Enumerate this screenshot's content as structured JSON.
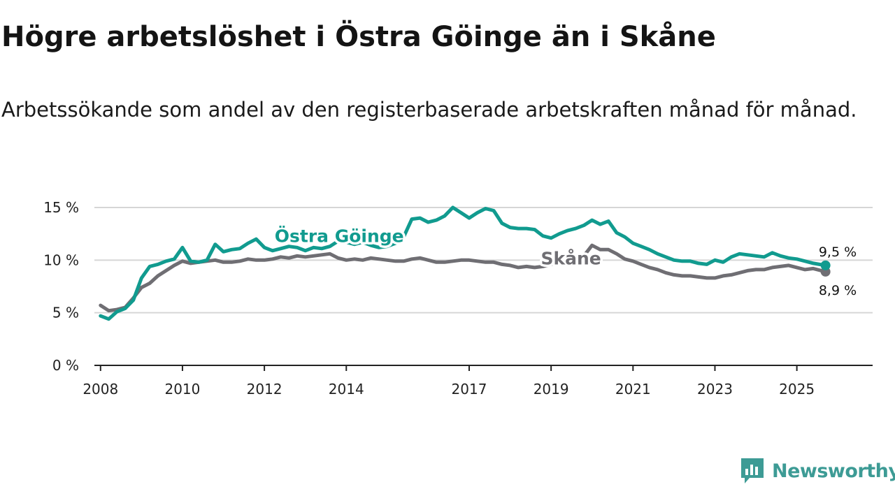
{
  "title": "Högre arbetslöshet i Östra Göinge än i Skåne",
  "subtitle": "Arbetssökande som andel av den registerbaserade arbetskraften månad för månad.",
  "brand": "Newsworthy",
  "colors": {
    "primary": "#119b8f",
    "secondary": "#6f6e73",
    "grid": "#d6d6d6",
    "axis": "#222222",
    "brand": "#3d9b95"
  },
  "chart_data": {
    "type": "line",
    "title": "Högre arbetslöshet i Östra Göinge än i Skåne",
    "xlabel": "",
    "ylabel": "",
    "xlim": [
      2007.85,
      2026.85
    ],
    "ylim": [
      0,
      15
    ],
    "y_ticks": [
      {
        "value": 0,
        "label": "0 %"
      },
      {
        "value": 5,
        "label": "5 %"
      },
      {
        "value": 10,
        "label": "10 %"
      },
      {
        "value": 15,
        "label": "15 %"
      }
    ],
    "x_ticks": [
      {
        "value": 2008,
        "label": "2008"
      },
      {
        "value": 2010,
        "label": "2010"
      },
      {
        "value": 2012,
        "label": "2012"
      },
      {
        "value": 2014,
        "label": "2014"
      },
      {
        "value": 2017,
        "label": "2017"
      },
      {
        "value": 2019,
        "label": "2019"
      },
      {
        "value": 2021,
        "label": "2021"
      },
      {
        "value": 2023,
        "label": "2023"
      },
      {
        "value": 2025,
        "label": "2025"
      }
    ],
    "grid": true,
    "series": [
      {
        "name": "Östra Göinge",
        "label": "Östra Göinge",
        "end_label": "9,5 %",
        "color": "#119b8f",
        "x": [
          2008.0,
          2008.2,
          2008.4,
          2008.6,
          2008.8,
          2009.0,
          2009.2,
          2009.4,
          2009.6,
          2009.8,
          2010.0,
          2010.2,
          2010.4,
          2010.6,
          2010.8,
          2011.0,
          2011.2,
          2011.4,
          2011.6,
          2011.8,
          2012.0,
          2012.2,
          2012.4,
          2012.6,
          2012.8,
          2013.0,
          2013.2,
          2013.4,
          2013.6,
          2013.8,
          2014.0,
          2014.2,
          2014.4,
          2014.6,
          2014.8,
          2015.0,
          2015.2,
          2015.4,
          2015.6,
          2015.8,
          2016.0,
          2016.2,
          2016.4,
          2016.6,
          2016.8,
          2017.0,
          2017.2,
          2017.4,
          2017.6,
          2017.8,
          2018.0,
          2018.2,
          2018.4,
          2018.6,
          2018.8,
          2019.0,
          2019.2,
          2019.4,
          2019.6,
          2019.8,
          2020.0,
          2020.2,
          2020.4,
          2020.6,
          2020.8,
          2021.0,
          2021.2,
          2021.4,
          2021.6,
          2021.8,
          2022.0,
          2022.2,
          2022.4,
          2022.6,
          2022.8,
          2023.0,
          2023.2,
          2023.4,
          2023.6,
          2023.8,
          2024.0,
          2024.2,
          2024.4,
          2024.6,
          2024.8,
          2025.0,
          2025.2,
          2025.4,
          2025.7
        ],
        "values": [
          4.7,
          4.4,
          5.1,
          5.4,
          6.2,
          8.3,
          9.4,
          9.6,
          9.9,
          10.1,
          11.2,
          9.9,
          9.8,
          10.0,
          11.5,
          10.8,
          11.0,
          11.1,
          11.6,
          12.0,
          11.2,
          10.9,
          11.1,
          11.3,
          11.2,
          10.9,
          11.2,
          11.1,
          11.3,
          11.8,
          11.7,
          11.5,
          11.7,
          11.4,
          11.2,
          11.3,
          11.6,
          12.2,
          13.9,
          14.0,
          13.6,
          13.8,
          14.2,
          15.0,
          14.5,
          14.0,
          14.5,
          14.9,
          14.7,
          13.5,
          13.1,
          13.0,
          13.0,
          12.9,
          12.3,
          12.1,
          12.5,
          12.8,
          13.0,
          13.3,
          13.8,
          13.4,
          13.7,
          12.6,
          12.2,
          11.6,
          11.3,
          11.0,
          10.6,
          10.3,
          10.0,
          9.9,
          9.9,
          9.7,
          9.6,
          10.0,
          9.8,
          10.3,
          10.6,
          10.5,
          10.4,
          10.3,
          10.7,
          10.4,
          10.2,
          10.1,
          9.9,
          9.7,
          9.5
        ]
      },
      {
        "name": "Skåne",
        "label": "Skåne",
        "end_label": "8,9 %",
        "color": "#6f6e73",
        "x": [
          2008.0,
          2008.2,
          2008.4,
          2008.6,
          2008.8,
          2009.0,
          2009.2,
          2009.4,
          2009.6,
          2009.8,
          2010.0,
          2010.2,
          2010.4,
          2010.6,
          2010.8,
          2011.0,
          2011.2,
          2011.4,
          2011.6,
          2011.8,
          2012.0,
          2012.2,
          2012.4,
          2012.6,
          2012.8,
          2013.0,
          2013.2,
          2013.4,
          2013.6,
          2013.8,
          2014.0,
          2014.2,
          2014.4,
          2014.6,
          2014.8,
          2015.0,
          2015.2,
          2015.4,
          2015.6,
          2015.8,
          2016.0,
          2016.2,
          2016.4,
          2016.6,
          2016.8,
          2017.0,
          2017.2,
          2017.4,
          2017.6,
          2017.8,
          2018.0,
          2018.2,
          2018.4,
          2018.6,
          2018.8,
          2019.0,
          2019.2,
          2019.4,
          2019.6,
          2019.8,
          2020.0,
          2020.2,
          2020.4,
          2020.6,
          2020.8,
          2021.0,
          2021.2,
          2021.4,
          2021.6,
          2021.8,
          2022.0,
          2022.2,
          2022.4,
          2022.6,
          2022.8,
          2023.0,
          2023.2,
          2023.4,
          2023.6,
          2023.8,
          2024.0,
          2024.2,
          2024.4,
          2024.6,
          2024.8,
          2025.0,
          2025.2,
          2025.4,
          2025.7
        ],
        "values": [
          5.7,
          5.2,
          5.3,
          5.5,
          6.4,
          7.4,
          7.8,
          8.5,
          9.0,
          9.5,
          9.9,
          9.7,
          9.8,
          9.9,
          10.0,
          9.8,
          9.8,
          9.9,
          10.1,
          10.0,
          10.0,
          10.1,
          10.3,
          10.2,
          10.4,
          10.3,
          10.4,
          10.5,
          10.6,
          10.2,
          10.0,
          10.1,
          10.0,
          10.2,
          10.1,
          10.0,
          9.9,
          9.9,
          10.1,
          10.2,
          10.0,
          9.8,
          9.8,
          9.9,
          10.0,
          10.0,
          9.9,
          9.8,
          9.8,
          9.6,
          9.5,
          9.3,
          9.4,
          9.3,
          9.4,
          9.6,
          9.9,
          10.1,
          10.0,
          10.4,
          11.4,
          11.0,
          11.0,
          10.6,
          10.1,
          9.9,
          9.6,
          9.3,
          9.1,
          8.8,
          8.6,
          8.5,
          8.5,
          8.4,
          8.3,
          8.3,
          8.5,
          8.6,
          8.8,
          9.0,
          9.1,
          9.1,
          9.3,
          9.4,
          9.5,
          9.3,
          9.1,
          9.2,
          8.9
        ]
      }
    ]
  }
}
